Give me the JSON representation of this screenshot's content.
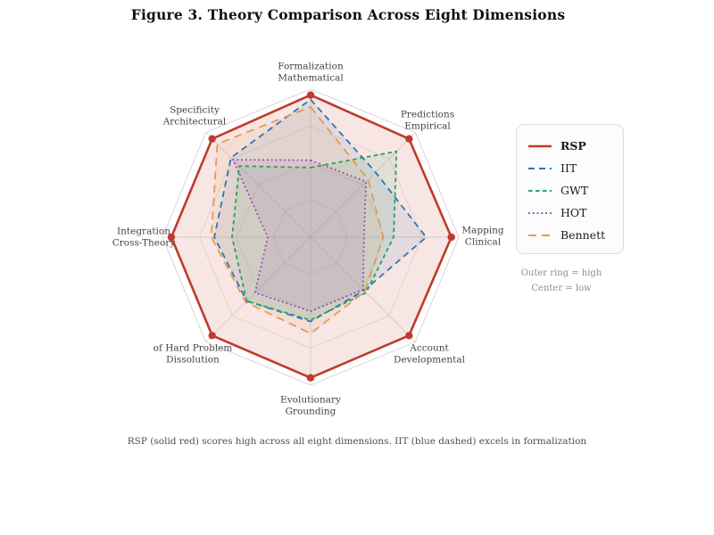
{
  "caption": "RSP (solid red) scores high across all eight dimensions. IIT (blue dashed) excels in formalization",
  "chart_data": {
    "type": "radar",
    "title": "Figure 3. Theory Comparison Across Eight Dimensions",
    "value_range": [
      0,
      1
    ],
    "grid": {
      "shape": "octagon",
      "rings": 4,
      "spokes": 8
    },
    "legend_position": "right",
    "axes": [
      [
        "Formalization",
        "Mathematical"
      ],
      [
        "Predictions",
        "Empirical"
      ],
      [
        "Mapping",
        "Clinical"
      ],
      [
        "Account",
        "Developmental"
      ],
      [
        "Evolutionary",
        "Grounding"
      ],
      [
        "of Hard Problem",
        "Dissolution"
      ],
      [
        "Integration",
        "Cross-Theory"
      ],
      [
        "Specificity",
        "Architectural"
      ]
    ],
    "series": [
      {
        "name": "RSP",
        "color": "#bf3b2c",
        "style": "solid",
        "dash": "",
        "markers": true,
        "values": [
          0.96,
          0.94,
          0.95,
          0.94,
          0.95,
          0.94,
          0.94,
          0.94
        ]
      },
      {
        "name": "IIT",
        "color": "#2e75b5",
        "style": "dashed",
        "dash": "7 5",
        "markers": false,
        "values": [
          0.93,
          0.62,
          0.78,
          0.51,
          0.57,
          0.61,
          0.65,
          0.76
        ]
      },
      {
        "name": "GWT",
        "color": "#2aa25e",
        "style": "dashed",
        "dash": "4.5 3.5",
        "markers": false,
        "values": [
          0.47,
          0.82,
          0.56,
          0.53,
          0.56,
          0.61,
          0.53,
          0.68
        ]
      },
      {
        "name": "HOT",
        "color": "#9348bb",
        "style": "dotted",
        "dash": "1.8 3",
        "markers": false,
        "values": [
          0.52,
          0.53,
          0.36,
          0.5,
          0.5,
          0.53,
          0.29,
          0.74
        ]
      },
      {
        "name": "Bennett",
        "color": "#e59a52",
        "style": "long-dash",
        "dash": "9 6",
        "markers": false,
        "values": [
          0.88,
          0.55,
          0.49,
          0.52,
          0.65,
          0.62,
          0.67,
          0.89
        ]
      }
    ],
    "annotations": [
      "Outer ring = high",
      "Center = low"
    ]
  }
}
